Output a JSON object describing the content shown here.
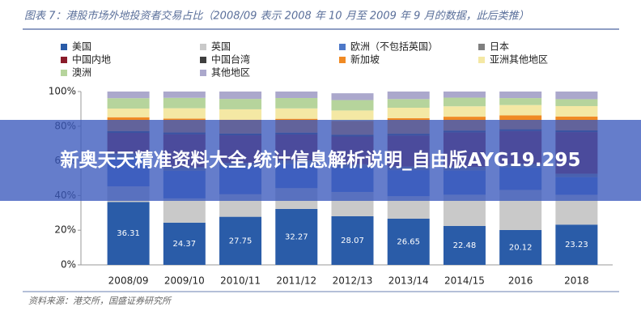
{
  "chart_data": {
    "type": "stacked_bar",
    "title": "图表 7：港股市场外地投资者交易占比（2008/09 表示 2008 年 10 月至 2009 年 9 月的数据，此后类推）",
    "source": "资料来源：港交所，国盛证券研究所",
    "banner": "新奥天天精准资料大全,统计信息解析说明_自由版AYG19.295",
    "categories": [
      "2008/09",
      "2009/10",
      "2010/11",
      "2011/12",
      "2012/13",
      "2013/14",
      "2014/15",
      "2016",
      "2018"
    ],
    "series": [
      {
        "name": "美国",
        "color": "#2a5ca8",
        "values": [
          36.31,
          24.37,
          27.75,
          32.27,
          28.07,
          26.65,
          22.48,
          20.12,
          23.23
        ]
      },
      {
        "name": "英国",
        "color": "#c9c9c9",
        "values": [
          9,
          14,
          13,
          12,
          14,
          13,
          18,
          23.1,
          17.22
        ]
      },
      {
        "name": "欧洲（不包括英国）",
        "color": "#4d78c8",
        "values": [
          17,
          16,
          16,
          14,
          14,
          15,
          14,
          13,
          10.15
        ]
      },
      {
        "name": "日本",
        "color": "#7f7f7f",
        "values": [
          2,
          2,
          2,
          2,
          2,
          2,
          2,
          2,
          2
        ]
      },
      {
        "name": "中国内地",
        "color": "#8a1c2a",
        "values": [
          11.86,
          19,
          16,
          15,
          16,
          18,
          20,
          19,
          24
        ]
      },
      {
        "name": "中国台湾",
        "color": "#3f3f3f",
        "values": [
          1,
          1,
          1,
          1,
          1,
          1,
          1,
          1,
          1
        ]
      },
      {
        "name": "新加坡",
        "color": "#f08a24",
        "values": [
          8,
          8,
          8,
          8,
          8,
          9,
          8,
          8,
          8
        ]
      },
      {
        "name": "亚洲其他地区",
        "color": "#f4e8a4",
        "values": [
          5,
          6,
          6,
          6,
          6,
          6,
          6,
          6,
          6
        ]
      },
      {
        "name": "澳洲",
        "color": "#b6d49c",
        "values": [
          6,
          6,
          6,
          6,
          6,
          5,
          5,
          4,
          4
        ]
      },
      {
        "name": "其他地区",
        "color": "#aba8cc",
        "values": [
          3.83,
          3.63,
          4.25,
          3.73,
          3.93,
          4.35,
          3.52,
          3.78,
          4.4
        ]
      }
    ],
    "ylim": [
      0,
      100
    ],
    "yticks": [
      {
        "value": 0,
        "label": "0%"
      },
      {
        "value": 20,
        "label": "20%"
      },
      {
        "value": 40,
        "label": "40%"
      },
      {
        "value": 60,
        "label": "60%"
      },
      {
        "value": 80,
        "label": "80%"
      },
      {
        "value": 100,
        "label": "100%"
      }
    ]
  }
}
